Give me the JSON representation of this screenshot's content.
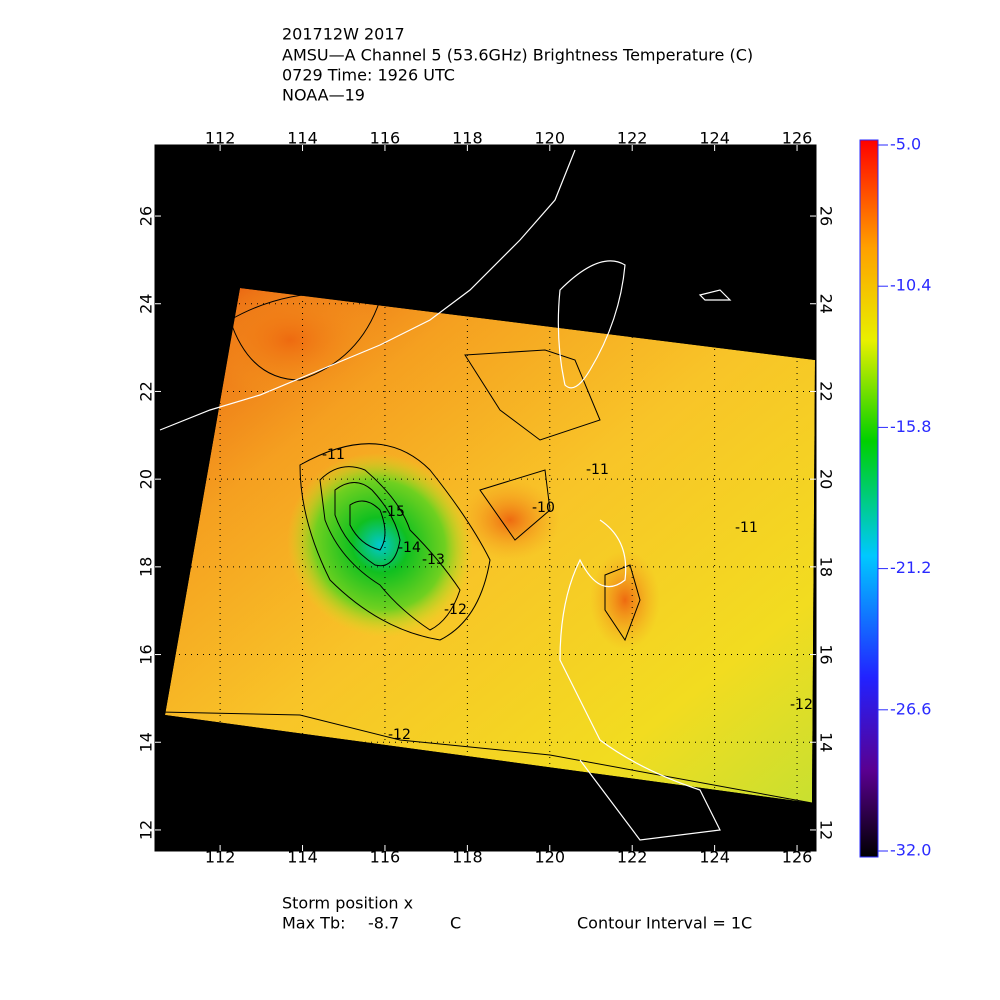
{
  "header": {
    "lines": [
      "201712W 2017",
      "AMSU—A Channel 5 (53.6GHz) Brightness Temperature (C)",
      "0729 Time: 1926 UTC",
      "NOAA—19"
    ]
  },
  "map": {
    "xlim": [
      110.42,
      126.46
    ],
    "ylim": [
      11.52,
      27.62
    ],
    "xticks": [
      112,
      114,
      116,
      118,
      120,
      122,
      124,
      126
    ],
    "yticks": [
      12,
      14,
      16,
      18,
      20,
      22,
      24,
      26
    ],
    "contour_labels": [
      -11,
      -15,
      -14,
      -13,
      -12,
      -10,
      -11,
      -11,
      -12,
      -12
    ]
  },
  "colorbar": {
    "range": [
      -32.0,
      -5.0
    ],
    "ticks": [
      {
        "value": -5.0,
        "label": "-5.0"
      },
      -10.4,
      -15.8,
      -21.2,
      -26.6,
      {
        "value": -32.0,
        "label": "-32.0"
      }
    ]
  },
  "footer": {
    "storm": "Storm position x",
    "max_tb_label": "Max Tb:",
    "max_tb": -8.7,
    "max_tb_unit": "C",
    "contour_interval": "Contour Interval = 1C"
  }
}
